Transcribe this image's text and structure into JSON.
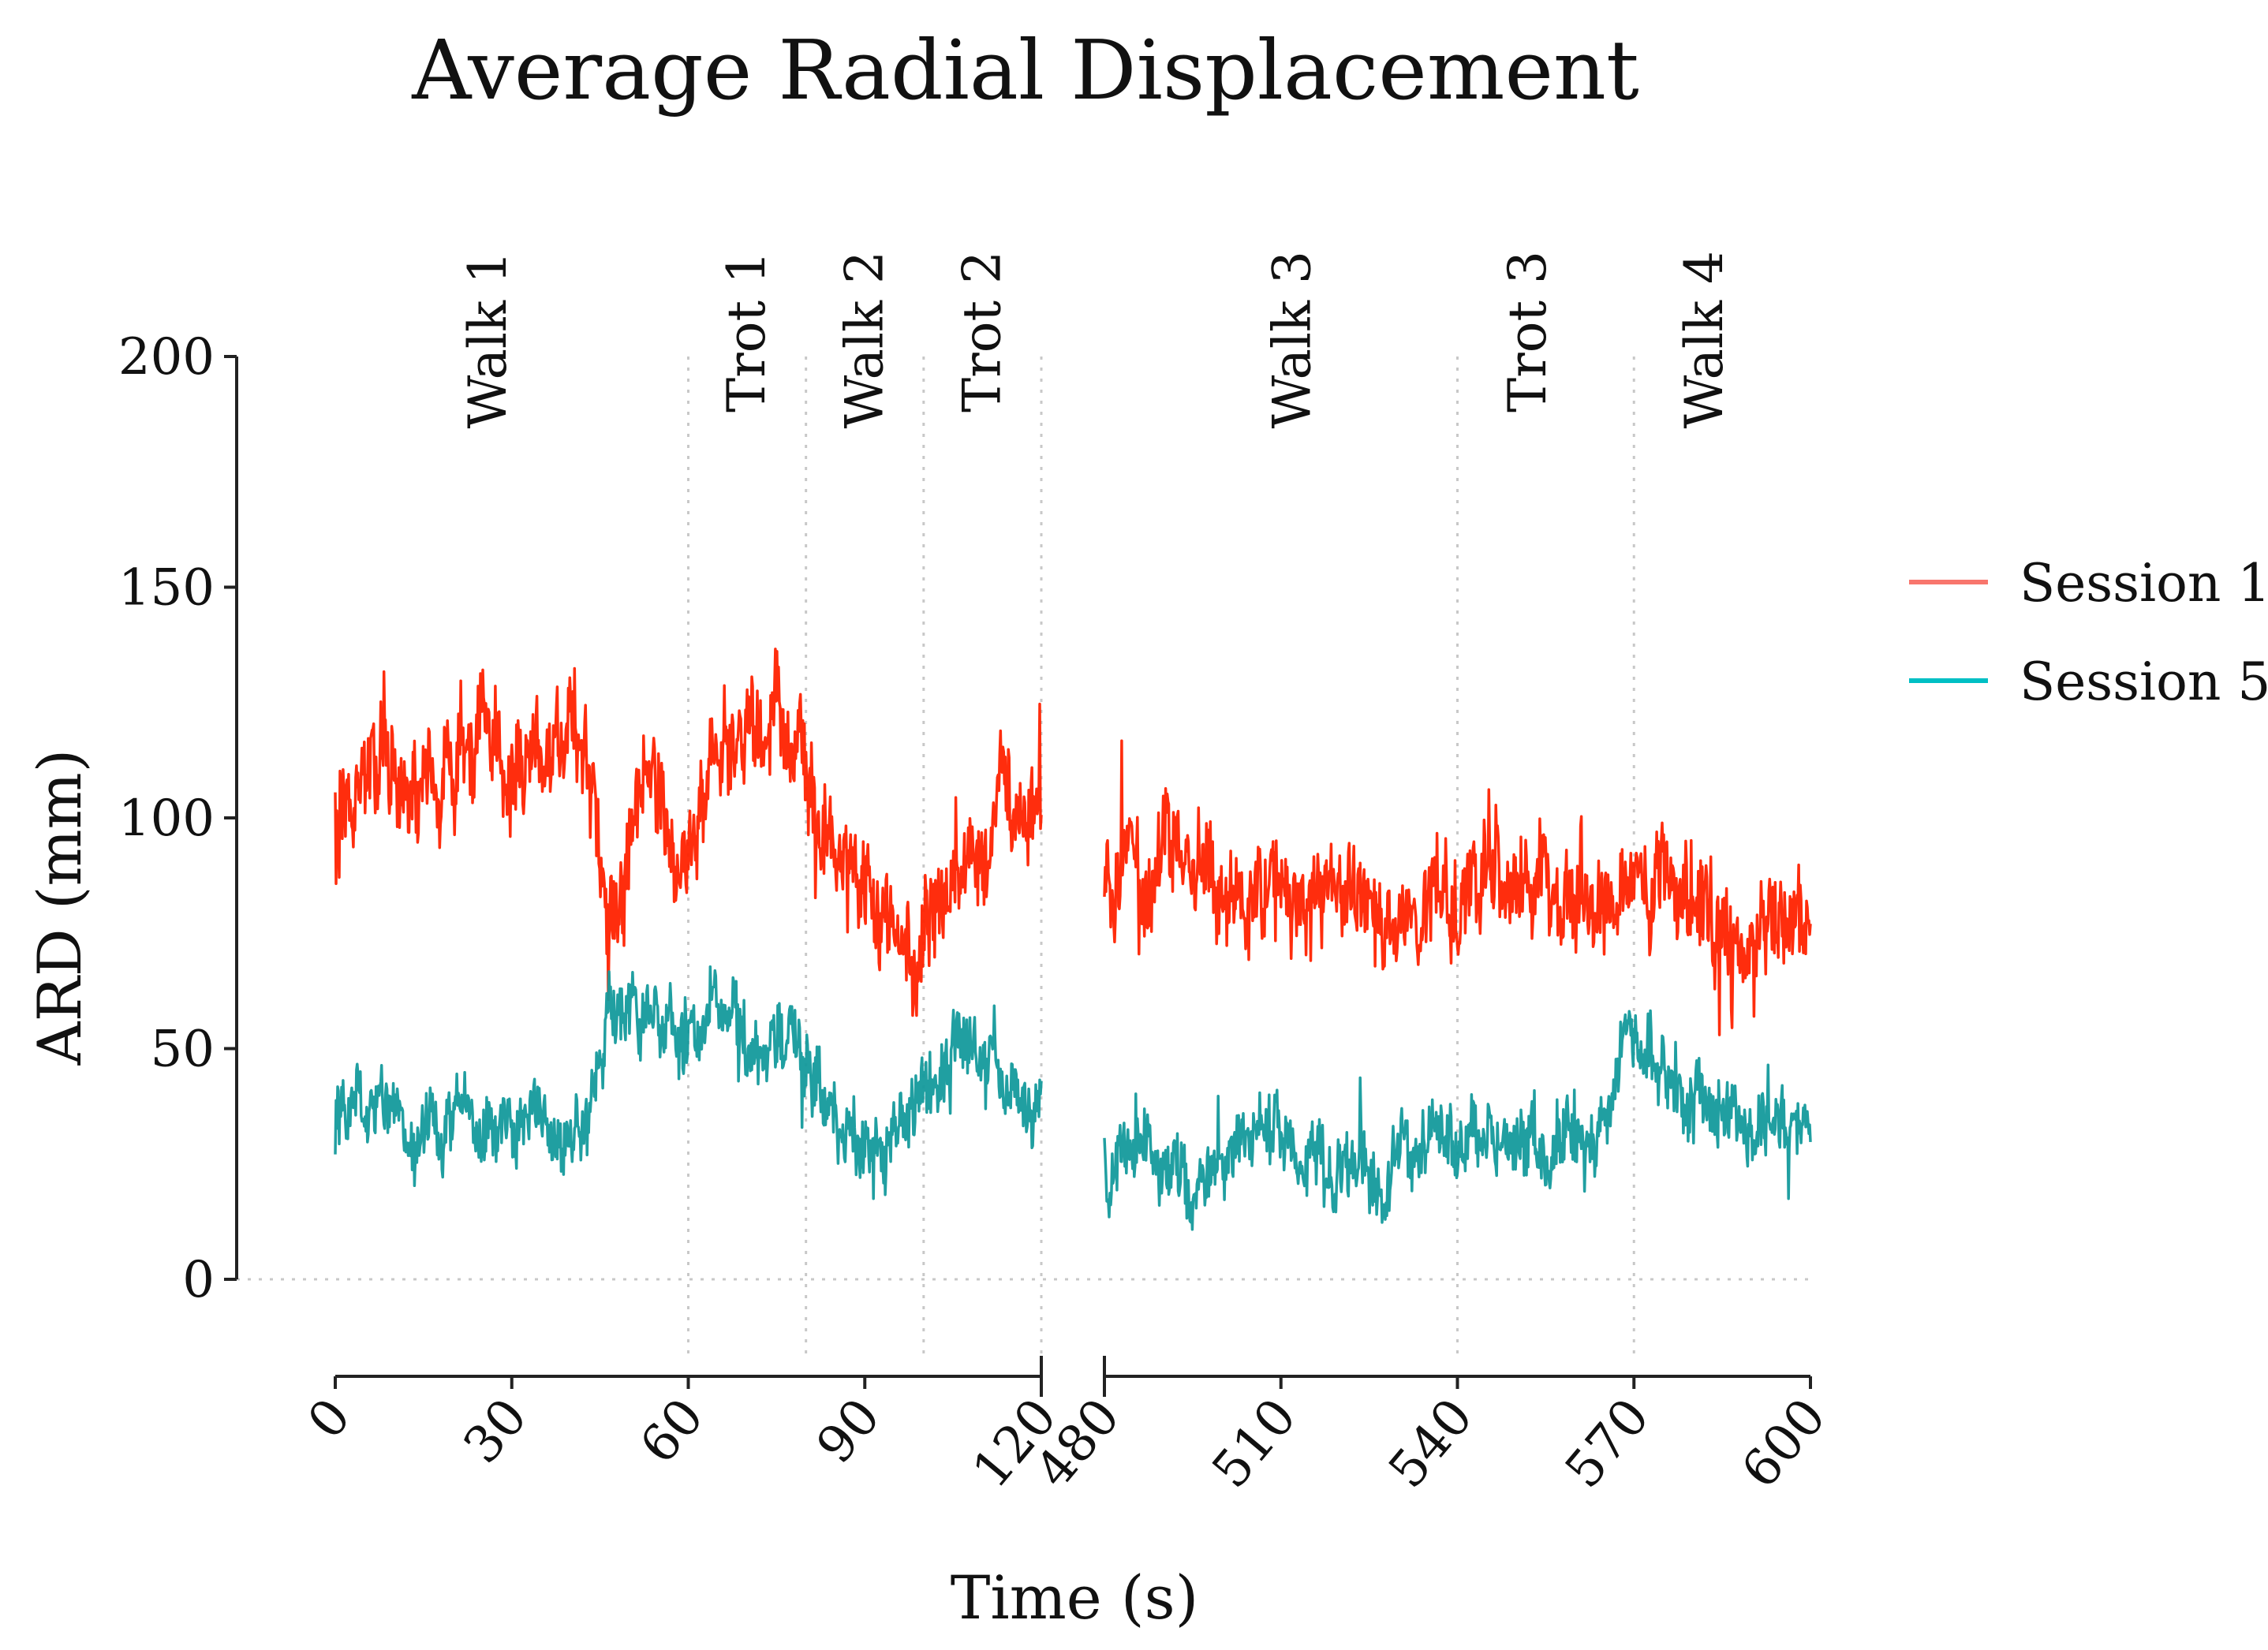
{
  "chart_data": {
    "type": "line",
    "title": "Average Radial Displacement",
    "xlabel": "Time (s)",
    "ylabel": "ARD (mm)",
    "ylim": [
      0,
      200
    ],
    "yticks": [
      "0",
      "50",
      "100",
      "150",
      "200"
    ],
    "ytick_values": [
      0,
      50,
      100,
      150,
      200
    ],
    "x_segments": [
      {
        "range": [
          0,
          120
        ],
        "ticks": [
          0,
          30,
          60,
          90,
          120
        ],
        "tick_labels": [
          "0",
          "30",
          "60",
          "90",
          "120"
        ]
      },
      {
        "range": [
          480,
          600
        ],
        "ticks": [
          480,
          510,
          540,
          570,
          600
        ],
        "tick_labels": [
          "480",
          "510",
          "540",
          "570",
          "600"
        ]
      }
    ],
    "phase_boundaries": [
      60,
      80,
      100,
      120,
      540,
      570
    ],
    "phases": [
      {
        "label": "Walk 1",
        "x": 26
      },
      {
        "label": "Trot 1",
        "x": 70
      },
      {
        "label": "Walk 2",
        "x": 90
      },
      {
        "label": "Trot 2",
        "x": 110
      },
      {
        "label": "Walk 3",
        "x": 512
      },
      {
        "label": "Trot 3",
        "x": 552
      },
      {
        "label": "Walk 4",
        "x": 582
      }
    ],
    "legend_position": "right",
    "series": [
      {
        "name": "Session 1",
        "color": "#f8766d",
        "line_color": "#ff2200",
        "noise": 10,
        "x": [
          0,
          5,
          10,
          15,
          20,
          25,
          30,
          35,
          40,
          43,
          45,
          47,
          50,
          55,
          58,
          62,
          65,
          70,
          75,
          78,
          82,
          86,
          90,
          95,
          98,
          102,
          106,
          110,
          115,
          120,
          480,
          485,
          490,
          495,
          500,
          505,
          510,
          515,
          520,
          525,
          530,
          535,
          540,
          545,
          550,
          555,
          560,
          565,
          570,
          575,
          580,
          585,
          590,
          595,
          600
        ],
        "values": [
          102,
          110,
          113,
          108,
          112,
          115,
          112,
          115,
          118,
          115,
          85,
          70,
          95,
          103,
          90,
          102,
          110,
          118,
          125,
          118,
          100,
          92,
          85,
          76,
          70,
          82,
          90,
          96,
          102,
          100,
          80,
          88,
          95,
          87,
          82,
          80,
          84,
          78,
          80,
          83,
          78,
          80,
          83,
          84,
          85,
          83,
          85,
          80,
          86,
          82,
          80,
          73,
          72,
          78,
          80
        ]
      },
      {
        "name": "Session 5",
        "color": "#00bfc4",
        "line_color": "#149a9c",
        "noise": 7,
        "x": [
          0,
          5,
          10,
          15,
          20,
          25,
          30,
          35,
          40,
          43,
          45,
          47,
          50,
          55,
          58,
          62,
          65,
          70,
          75,
          78,
          82,
          86,
          90,
          95,
          98,
          102,
          106,
          110,
          115,
          120,
          480,
          485,
          490,
          495,
          500,
          505,
          510,
          515,
          520,
          525,
          530,
          535,
          540,
          545,
          550,
          555,
          560,
          565,
          570,
          575,
          580,
          585,
          590,
          595,
          600
        ],
        "values": [
          40,
          38,
          35,
          33,
          37,
          34,
          32,
          35,
          30,
          36,
          45,
          55,
          60,
          55,
          50,
          55,
          60,
          52,
          48,
          52,
          40,
          32,
          30,
          32,
          38,
          45,
          55,
          50,
          45,
          38,
          28,
          27,
          26,
          22,
          28,
          30,
          33,
          30,
          25,
          23,
          24,
          32,
          35,
          30,
          28,
          28,
          30,
          33,
          58,
          45,
          38,
          33,
          32,
          33,
          35
        ]
      }
    ]
  }
}
